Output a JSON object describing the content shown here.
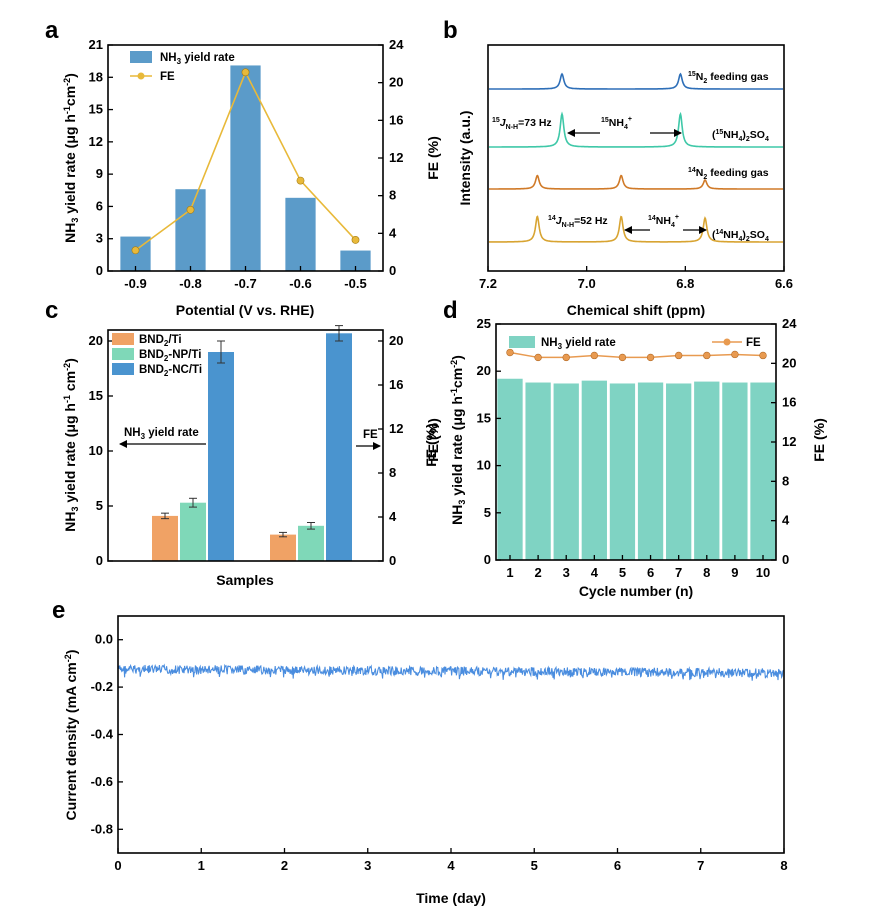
{
  "panels": {
    "a": "a",
    "b": "b",
    "c": "c",
    "d": "d",
    "e": "e"
  },
  "colors": {
    "bar_a": "#5b9bc9",
    "fe_a": "#e8b93a",
    "bnd_ti": "#f0a265",
    "bnd_np": "#7fd8b8",
    "bnd_nc": "#4a94cf",
    "bar_d": "#7fd3c3",
    "fe_d": "#e89a50",
    "line_e": "#4a8ddf",
    "nmr1": "#2e6fb8",
    "nmr2": "#3fc8a8",
    "nmr3": "#d07a28",
    "nmr4": "#d8a432"
  },
  "chart_data": [
    {
      "id": "a",
      "type": "bar",
      "xlabel": "Potential (V vs. RHE)",
      "ylabel": "NH3 yield rate (μg h⁻¹cm⁻²)",
      "ylabel_right": "FE (%)",
      "categories": [
        "-0.9",
        "-0.8",
        "-0.7",
        "-0.6",
        "-0.5"
      ],
      "ylim": [
        0,
        21
      ],
      "yticks": [
        "0",
        "3",
        "6",
        "9",
        "12",
        "15",
        "18",
        "21"
      ],
      "ylim_right": [
        0,
        24
      ],
      "yticks_right": [
        "0",
        "4",
        "8",
        "12",
        "16",
        "20",
        "24"
      ],
      "legend": [
        "NH3 yield rate",
        "FE"
      ],
      "series": [
        {
          "name": "NH3 yield rate",
          "type": "bar",
          "values": [
            3.2,
            7.6,
            19.1,
            6.8,
            1.9
          ]
        },
        {
          "name": "FE",
          "type": "line",
          "axis": "right",
          "values": [
            2.2,
            6.5,
            21.1,
            9.6,
            3.3
          ]
        }
      ]
    },
    {
      "id": "b",
      "type": "line",
      "xlabel": "Chemical shift (ppm)",
      "ylabel": "Intensity (a.u.)",
      "xlim": [
        7.2,
        6.6
      ],
      "xticks": [
        "7.2",
        "7.0",
        "6.8",
        "6.6"
      ],
      "traces": [
        {
          "label": "15N2 feeding gas",
          "peaks": [
            7.05,
            6.81
          ],
          "heights": [
            1.0,
            1.0
          ]
        },
        {
          "label": "(15NH4)2SO4",
          "peaks": [
            7.05,
            6.81
          ],
          "heights": [
            2.2,
            2.2
          ],
          "coupling": "15JN-H=73 Hz",
          "species": "15NH4+"
        },
        {
          "label": "14N2 feeding gas",
          "peaks": [
            7.1,
            6.93,
            6.76
          ],
          "heights": [
            0.9,
            0.9,
            0.6
          ]
        },
        {
          "label": "(14NH4)2SO4",
          "peaks": [
            7.1,
            6.93,
            6.76
          ],
          "heights": [
            1.7,
            1.7,
            1.6
          ],
          "coupling": "14JN-H=52 Hz",
          "species": "14NH4+"
        }
      ]
    },
    {
      "id": "c",
      "type": "bar",
      "xlabel": "Samples",
      "ylabel": "NH3 yield rate (μg h⁻¹ cm⁻²)",
      "ylabel_right": "FE (%)",
      "ylim": [
        0,
        21
      ],
      "yticks": [
        "0",
        "5",
        "10",
        "15",
        "20"
      ],
      "ylim_right": [
        0,
        21
      ],
      "yticks_right": [
        "0",
        "4",
        "8",
        "12",
        "16",
        "20"
      ],
      "groups": [
        "NH3 yield rate",
        "FE"
      ],
      "annotations": [
        "NH3 yield rate",
        "FE"
      ],
      "series": [
        {
          "name": "BND2/Ti",
          "values": [
            4.1,
            2.4
          ],
          "errors": [
            0.25,
            0.2
          ]
        },
        {
          "name": "BND2-NP/Ti",
          "values": [
            5.3,
            3.2
          ],
          "errors": [
            0.4,
            0.3
          ]
        },
        {
          "name": "BND2-NC/Ti",
          "values": [
            19.0,
            20.7
          ],
          "errors": [
            1.0,
            0.7
          ]
        }
      ]
    },
    {
      "id": "d",
      "type": "bar",
      "xlabel": "Cycle number (n)",
      "ylabel": "NH3 yield rate (μg h⁻¹cm⁻²)",
      "ylabel_right": "FE (%)",
      "ylabel_left_inner": "FE (%)",
      "categories": [
        "1",
        "2",
        "3",
        "4",
        "5",
        "6",
        "7",
        "8",
        "9",
        "10"
      ],
      "ylim": [
        0,
        25
      ],
      "yticks": [
        "0",
        "5",
        "10",
        "15",
        "20",
        "25"
      ],
      "ylim_right": [
        0,
        24
      ],
      "yticks_right": [
        "0",
        "4",
        "8",
        "12",
        "16",
        "20",
        "24"
      ],
      "legend": [
        "NH3 yield rate",
        "FE"
      ],
      "series": [
        {
          "name": "NH3 yield rate",
          "type": "bar",
          "values": [
            19.2,
            18.8,
            18.7,
            19.0,
            18.7,
            18.8,
            18.7,
            18.9,
            18.8,
            18.8
          ]
        },
        {
          "name": "FE",
          "type": "line",
          "axis": "right",
          "values": [
            21.1,
            20.6,
            20.6,
            20.8,
            20.6,
            20.6,
            20.8,
            20.8,
            20.9,
            20.8
          ]
        }
      ]
    },
    {
      "id": "e",
      "type": "line",
      "xlabel": "Time (day)",
      "ylabel": "Current density (mA cm⁻²)",
      "xlim": [
        0,
        8
      ],
      "xticks": [
        "0",
        "1",
        "2",
        "3",
        "4",
        "5",
        "6",
        "7",
        "8"
      ],
      "ylim": [
        -0.9,
        0.1
      ],
      "yticks": [
        "0.0",
        "-0.2",
        "-0.4",
        "-0.6",
        "-0.8"
      ],
      "series": [
        {
          "name": "",
          "x_start": 0,
          "x_end": 8,
          "y_start": -0.125,
          "y_end": -0.14
        }
      ]
    }
  ]
}
